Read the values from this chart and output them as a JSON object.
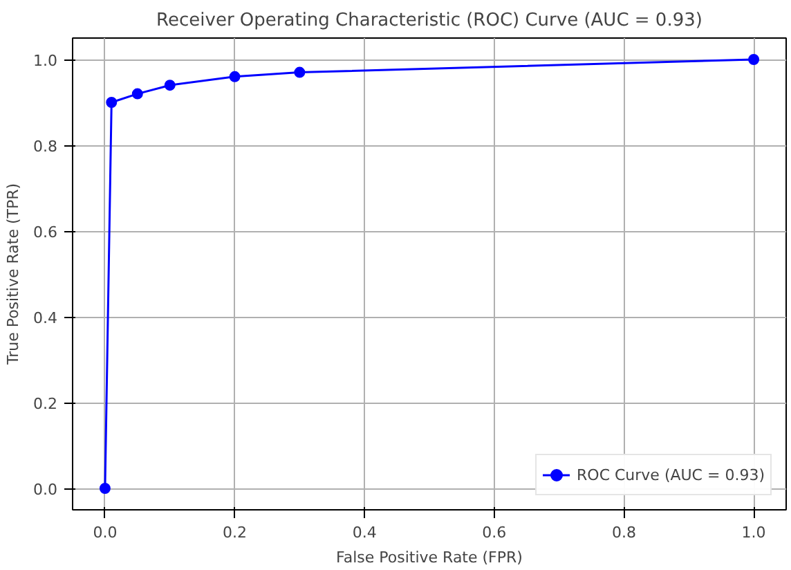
{
  "chart_data": {
    "type": "line",
    "title": "Receiver Operating Characteristic (ROC) Curve (AUC = 0.93)",
    "xlabel": "False Positive Rate (FPR)",
    "ylabel": "True Positive Rate (TPR)",
    "x": [
      0,
      0.01,
      0.05,
      0.1,
      0.2,
      0.3,
      1.0
    ],
    "series": [
      {
        "name": "ROC Curve (AUC = 0.93)",
        "color": "#0000ff",
        "values": [
          0,
          0.9,
          0.92,
          0.94,
          0.96,
          0.97,
          1.0
        ]
      }
    ],
    "xlim": [
      -0.05,
      1.05
    ],
    "ylim": [
      -0.05,
      1.05
    ],
    "xticks": [
      {
        "value": 0,
        "label": "0.0"
      },
      {
        "value": 0.2,
        "label": "0.2"
      },
      {
        "value": 0.4,
        "label": "0.4"
      },
      {
        "value": 0.6,
        "label": "0.6"
      },
      {
        "value": 0.8,
        "label": "0.8"
      },
      {
        "value": 1,
        "label": "1.0"
      }
    ],
    "yticks": [
      {
        "value": 0,
        "label": "0.0"
      },
      {
        "value": 0.2,
        "label": "0.2"
      },
      {
        "value": 0.4,
        "label": "0.4"
      },
      {
        "value": 0.6,
        "label": "0.6"
      },
      {
        "value": 0.8,
        "label": "0.8"
      },
      {
        "value": 1,
        "label": "1.0"
      }
    ],
    "grid": true,
    "legend": "bottom right",
    "marker": "circle",
    "line_style": "solid"
  }
}
